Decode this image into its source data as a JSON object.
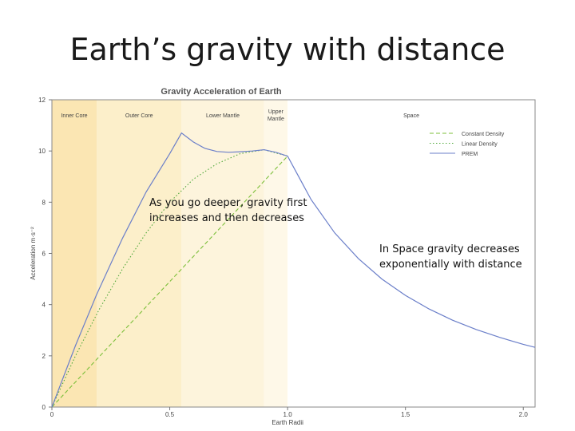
{
  "slide": {
    "title": "Earth’s gravity with distance",
    "notes": [
      "As you go deeper, gravity first increases and then decreases",
      "In Space gravity decreases exponentially with distance"
    ]
  },
  "chart_data": {
    "type": "line",
    "title": "Gravity Acceleration of Earth",
    "xlabel": "Earth Radii",
    "ylabel": "Acceleration m·s⁻²",
    "xlim": [
      0,
      2.05
    ],
    "ylim": [
      0,
      12
    ],
    "x_ticks": [
      "0",
      "0.5",
      "1.0",
      "1.5",
      "2.0"
    ],
    "y_ticks": [
      "0",
      "2",
      "4",
      "6",
      "8",
      "10",
      "12"
    ],
    "x_tick_values": [
      0,
      0.5,
      1.0,
      1.5,
      2.0
    ],
    "y_tick_values": [
      0,
      2,
      4,
      6,
      8,
      10,
      12
    ],
    "legend_position": "top-right",
    "regions": [
      {
        "label": "Inner Core",
        "x0": 0,
        "x1": 0.19,
        "color": "#fbe6b3"
      },
      {
        "label": "Outer Core",
        "x0": 0.19,
        "x1": 0.55,
        "color": "#fcefca"
      },
      {
        "label": "Lower Mantle",
        "x0": 0.55,
        "x1": 0.9,
        "color": "#fdf4dc"
      },
      {
        "label": "Upper Mantle",
        "x0": 0.9,
        "x1": 1.0,
        "color": "#fef8e8"
      },
      {
        "label": "Space",
        "x0": 1.0,
        "x1": 2.05,
        "color": "#ffffff"
      }
    ],
    "series": [
      {
        "name": "Constant Density",
        "style": "dashed",
        "color": "#7cbf3a",
        "x": [
          0,
          1.0
        ],
        "y": [
          0,
          9.8
        ]
      },
      {
        "name": "Linear Density",
        "style": "dotted",
        "color": "#4fa83a",
        "x": [
          0,
          0.1,
          0.2,
          0.3,
          0.4,
          0.5,
          0.6,
          0.7,
          0.8,
          0.9,
          1.0
        ],
        "y": [
          0,
          2.0,
          3.8,
          5.4,
          6.8,
          8.0,
          8.9,
          9.5,
          9.9,
          10.05,
          9.8
        ]
      },
      {
        "name": "PREM",
        "style": "solid",
        "color": "#6b7fc9",
        "x": [
          0,
          0.1,
          0.19,
          0.3,
          0.4,
          0.5,
          0.55,
          0.6,
          0.65,
          0.7,
          0.75,
          0.8,
          0.85,
          0.9,
          0.95,
          1.0,
          1.1,
          1.2,
          1.3,
          1.4,
          1.5,
          1.6,
          1.7,
          1.8,
          1.9,
          2.0,
          2.05
        ],
        "y": [
          0,
          2.4,
          4.4,
          6.6,
          8.4,
          9.9,
          10.7,
          10.35,
          10.1,
          9.98,
          9.95,
          9.97,
          10.0,
          10.05,
          9.95,
          9.8,
          8.1,
          6.8,
          5.8,
          5.0,
          4.36,
          3.83,
          3.39,
          3.03,
          2.72,
          2.45,
          2.33
        ]
      }
    ]
  }
}
